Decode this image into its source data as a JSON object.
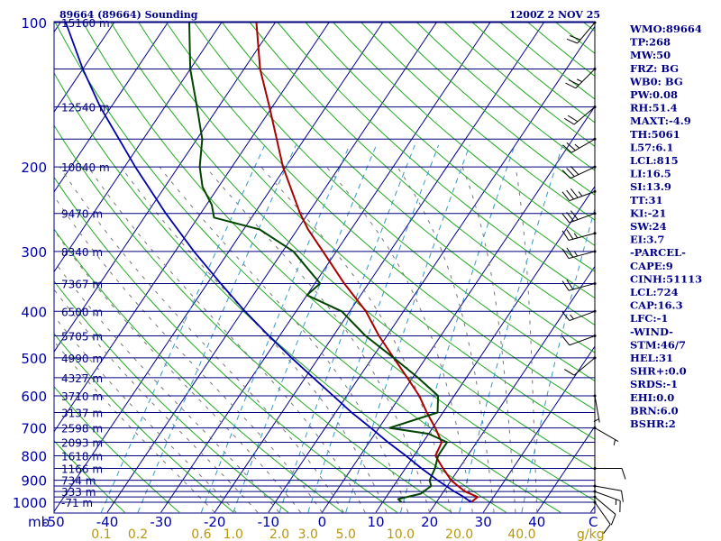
{
  "header": {
    "station": "89664 (89664) Sounding",
    "time": "1200Z  2 NOV 25"
  },
  "colors": {
    "isobar": "#00007f",
    "isotherm": "#00008b",
    "dry_adiabat": "#22aa22",
    "moist_adiabat": "#777777",
    "mixing_ratio": "#3399cc",
    "temperature": "#aa0000",
    "dewpoint": "#004400",
    "parcel": "#0000aa",
    "tick_text": "#0000aa",
    "mixing_text": "#b8960b",
    "index_text": "#00008b"
  },
  "chart_data": {
    "type": "line",
    "title": "89664 (89664) Sounding",
    "subtitle": "1200Z  2 NOV 25",
    "xlabel": "C",
    "ylabel": "mb",
    "skew_per_decade_c": 60,
    "pressure_range_mb": [
      100,
      1050
    ],
    "pressure_ticks": [
      100,
      200,
      300,
      400,
      500,
      600,
      700,
      800,
      900,
      1000
    ],
    "pressure_tick_labels": [
      "100",
      "200",
      "300",
      "400",
      "500",
      "600",
      "700",
      "800",
      "900",
      "1000"
    ],
    "isobar_levels": [
      100,
      125,
      150,
      175,
      200,
      250,
      300,
      350,
      400,
      450,
      500,
      550,
      600,
      650,
      700,
      750,
      800,
      850,
      900,
      925,
      950,
      975,
      1000
    ],
    "temperature_ticks": [
      -50,
      -40,
      -30,
      -20,
      -10,
      0,
      10,
      20,
      30,
      40
    ],
    "temperature_tick_labels": [
      "-50",
      "-40",
      "-30",
      "-20",
      "-10",
      "0",
      "10",
      "20",
      "30",
      "40"
    ],
    "mixing_ratio_labels": [
      "0.1",
      "0.2",
      "0.6",
      "1.0",
      "2.0",
      "3.0",
      "5.0",
      "10.0",
      "20.0",
      "40.0"
    ],
    "mixing_ratio_values": [
      0.1,
      0.2,
      0.6,
      1.0,
      2.0,
      3.0,
      5.0,
      10.0,
      20.0,
      40.0
    ],
    "mixing_unit": "g/kg",
    "height_labels": [
      {
        "p": 100,
        "text": "15160 m"
      },
      {
        "p": 150,
        "text": "12540 m"
      },
      {
        "p": 200,
        "text": "10840 m"
      },
      {
        "p": 250,
        "text": "9470 m"
      },
      {
        "p": 300,
        "text": "8340 m"
      },
      {
        "p": 350,
        "text": "7367 m"
      },
      {
        "p": 400,
        "text": "6500 m"
      },
      {
        "p": 450,
        "text": "5705 m"
      },
      {
        "p": 500,
        "text": "4990 m"
      },
      {
        "p": 550,
        "text": "4327 m"
      },
      {
        "p": 600,
        "text": "3710 m"
      },
      {
        "p": 650,
        "text": "3137 m"
      },
      {
        "p": 700,
        "text": "2598 m"
      },
      {
        "p": 750,
        "text": "2093 m"
      },
      {
        "p": 800,
        "text": "1618 m"
      },
      {
        "p": 850,
        "text": "1166 m"
      },
      {
        "p": 900,
        "text": "734 m"
      },
      {
        "p": 950,
        "text": "333 m"
      },
      {
        "p": 1000,
        "text": "-71 m"
      }
    ],
    "series": [
      {
        "name": "Temperature",
        "points": [
          [
            1000,
            26.5
          ],
          [
            975,
            27.0
          ],
          [
            950,
            24.0
          ],
          [
            925,
            22.0
          ],
          [
            900,
            20.0
          ],
          [
            850,
            17.0
          ],
          [
            800,
            14.0
          ],
          [
            750,
            13.5
          ],
          [
            700,
            10.5
          ],
          [
            650,
            7.0
          ],
          [
            600,
            3.5
          ],
          [
            550,
            -1.0
          ],
          [
            500,
            -6.0
          ],
          [
            450,
            -11.5
          ],
          [
            400,
            -17.0
          ],
          [
            350,
            -24.5
          ],
          [
            300,
            -32.5
          ],
          [
            270,
            -38.0
          ],
          [
            250,
            -41.5
          ],
          [
            200,
            -50.5
          ],
          [
            150,
            -60.5
          ],
          [
            125,
            -67.0
          ],
          [
            100,
            -73.5
          ]
        ]
      },
      {
        "name": "Dewpoint",
        "points": [
          [
            1000,
            13.5
          ],
          [
            985,
            12.5
          ],
          [
            960,
            16.0
          ],
          [
            925,
            17.0
          ],
          [
            900,
            16.0
          ],
          [
            850,
            15.5
          ],
          [
            800,
            14.5
          ],
          [
            750,
            14.5
          ],
          [
            720,
            10.0
          ],
          [
            700,
            2.0
          ],
          [
            650,
            9.0
          ],
          [
            600,
            7.0
          ],
          [
            550,
            1.0
          ],
          [
            500,
            -6.0
          ],
          [
            450,
            -14.0
          ],
          [
            400,
            -21.5
          ],
          [
            370,
            -30.0
          ],
          [
            350,
            -29.0
          ],
          [
            300,
            -38.0
          ],
          [
            270,
            -47.0
          ],
          [
            255,
            -57.0
          ],
          [
            240,
            -59.0
          ],
          [
            220,
            -63.0
          ],
          [
            200,
            -66.0
          ],
          [
            175,
            -69.0
          ],
          [
            150,
            -74.0
          ],
          [
            125,
            -80.0
          ],
          [
            100,
            -86.0
          ]
        ]
      },
      {
        "name": "Parcel",
        "points": [
          [
            1000,
            26.5
          ],
          [
            970,
            24.0
          ],
          [
            950,
            22.0
          ],
          [
            900,
            17.5
          ],
          [
            850,
            13.0
          ],
          [
            800,
            8.5
          ],
          [
            750,
            3.5
          ],
          [
            700,
            -1.5
          ],
          [
            650,
            -7.0
          ],
          [
            600,
            -12.5
          ],
          [
            550,
            -18.5
          ],
          [
            500,
            -25.0
          ],
          [
            450,
            -32.0
          ],
          [
            400,
            -39.5
          ],
          [
            350,
            -47.5
          ],
          [
            300,
            -56.5
          ],
          [
            250,
            -66.5
          ],
          [
            200,
            -78.0
          ],
          [
            150,
            -92.0
          ],
          [
            125,
            -100.0
          ],
          [
            100,
            -109.0
          ]
        ]
      }
    ],
    "wind_barbs": [
      {
        "p": 1000,
        "dir": 145,
        "spd": 10
      },
      {
        "p": 975,
        "dir": 130,
        "spd": 10
      },
      {
        "p": 950,
        "dir": 110,
        "spd": 15
      },
      {
        "p": 925,
        "dir": 100,
        "spd": 10
      },
      {
        "p": 850,
        "dir": 90,
        "spd": 10
      },
      {
        "p": 700,
        "dir": 120,
        "spd": 5
      },
      {
        "p": 600,
        "dir": 170,
        "spd": 5
      },
      {
        "p": 500,
        "dir": 230,
        "spd": 10
      },
      {
        "p": 450,
        "dir": 250,
        "spd": 10
      },
      {
        "p": 400,
        "dir": 250,
        "spd": 15
      },
      {
        "p": 350,
        "dir": 255,
        "spd": 20
      },
      {
        "p": 300,
        "dir": 255,
        "spd": 25
      },
      {
        "p": 275,
        "dir": 255,
        "spd": 25
      },
      {
        "p": 250,
        "dir": 250,
        "spd": 30
      },
      {
        "p": 225,
        "dir": 250,
        "spd": 35
      },
      {
        "p": 200,
        "dir": 245,
        "spd": 30
      },
      {
        "p": 175,
        "dir": 240,
        "spd": 25
      },
      {
        "p": 150,
        "dir": 230,
        "spd": 20
      },
      {
        "p": 125,
        "dir": 225,
        "spd": 25
      },
      {
        "p": 100,
        "dir": 220,
        "spd": 20
      }
    ]
  },
  "indices": [
    "WMO:89664",
    "TP:268",
    "MW:50",
    "FRZ: BG",
    "WB0: BG",
    "PW:0.08",
    "RH:51.4",
    "MAXT:-4.9",
    "TH:5061",
    "L57:6.1",
    "LCL:815",
    "LI:16.5",
    "SI:13.9",
    "TT:31",
    "KI:-21",
    "SW:24",
    "EI:3.7",
    "-PARCEL-",
    "CAPE:9",
    "CINH:51113",
    "LCL:724",
    "CAP:16.3",
    "LFC:-1",
    "-WIND-",
    "STM:46/7",
    "HEL:31",
    "SHR+:0.0",
    "SRDS:-1",
    "EHI:0.0",
    "BRN:6.0",
    "BSHR:2"
  ]
}
